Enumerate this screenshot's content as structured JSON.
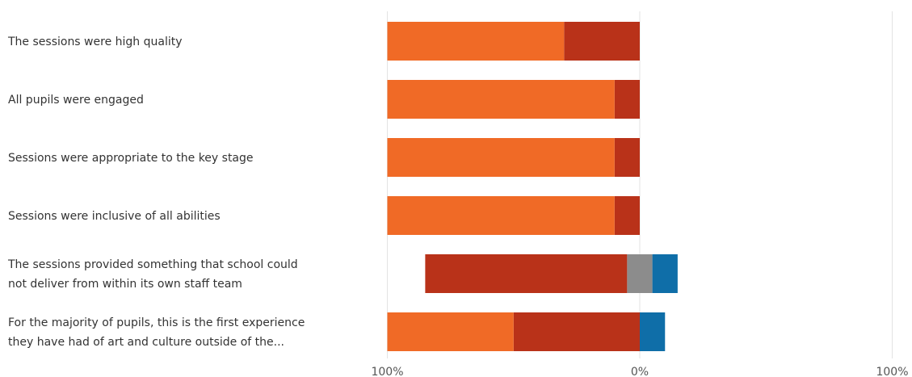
{
  "chart_data": {
    "type": "bar",
    "orientation": "horizontal",
    "layout": "diverging-stacked",
    "categories": [
      [
        "The sessions were high quality"
      ],
      [
        "All pupils were engaged"
      ],
      [
        "Sessions were appropriate to the key stage"
      ],
      [
        "Sessions were  inclusive of all abilities"
      ],
      [
        "The sessions provided something that school could",
        "not deliver from within its own staff team"
      ],
      [
        "For the majority of pupils, this is the first experience",
        "they have had of art and culture outside of the..."
      ]
    ],
    "series": [
      {
        "color": "#B93219",
        "side": "left",
        "values": [
          30,
          10,
          10,
          10,
          80,
          50
        ]
      },
      {
        "color": "#F06A26",
        "side": "left",
        "values": [
          70,
          90,
          90,
          90,
          0,
          50
        ]
      },
      {
        "color": "#8C8C8C",
        "side": "center",
        "values": [
          0,
          0,
          0,
          0,
          10,
          0
        ]
      },
      {
        "color": "#0F6EA8",
        "side": "right",
        "values": [
          0,
          0,
          0,
          0,
          10,
          10
        ]
      }
    ],
    "xlim": [
      -100,
      100
    ],
    "x_tick_labels": [
      "100%",
      "0%",
      "100%"
    ],
    "grid": true
  }
}
